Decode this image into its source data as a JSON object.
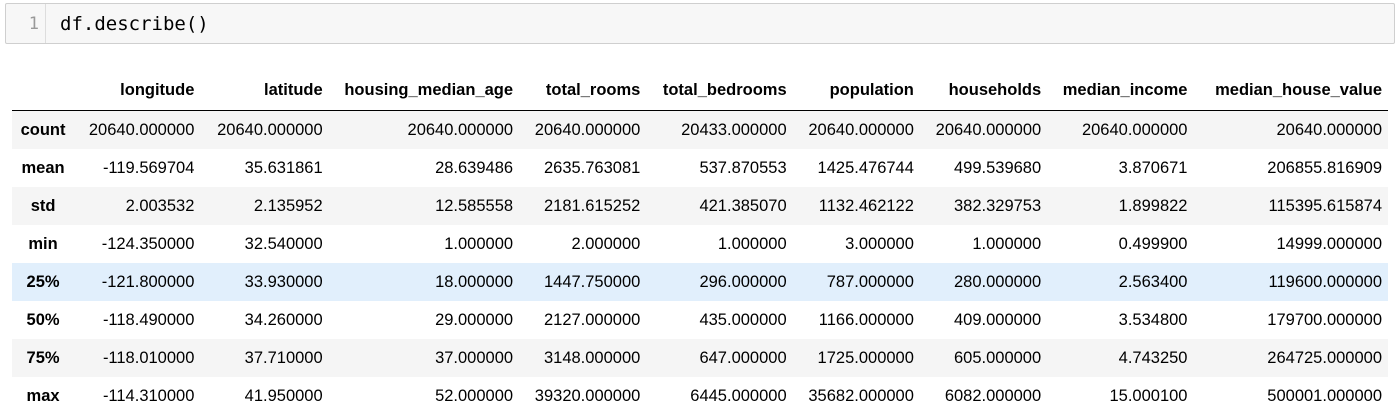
{
  "input_cell": {
    "line_number": "1",
    "code": "df.describe()"
  },
  "table": {
    "columns": [
      "longitude",
      "latitude",
      "housing_median_age",
      "total_rooms",
      "total_bedrooms",
      "population",
      "households",
      "median_income",
      "median_house_value"
    ],
    "rows": [
      {
        "index": "count",
        "values": [
          "20640.000000",
          "20640.000000",
          "20640.000000",
          "20640.000000",
          "20433.000000",
          "20640.000000",
          "20640.000000",
          "20640.000000",
          "20640.000000"
        ]
      },
      {
        "index": "mean",
        "values": [
          "-119.569704",
          "35.631861",
          "28.639486",
          "2635.763081",
          "537.870553",
          "1425.476744",
          "499.539680",
          "3.870671",
          "206855.816909"
        ]
      },
      {
        "index": "std",
        "values": [
          "2.003532",
          "2.135952",
          "12.585558",
          "2181.615252",
          "421.385070",
          "1132.462122",
          "382.329753",
          "1.899822",
          "115395.615874"
        ]
      },
      {
        "index": "min",
        "values": [
          "-124.350000",
          "32.540000",
          "1.000000",
          "2.000000",
          "1.000000",
          "3.000000",
          "1.000000",
          "0.499900",
          "14999.000000"
        ]
      },
      {
        "index": "25%",
        "values": [
          "-121.800000",
          "33.930000",
          "18.000000",
          "1447.750000",
          "296.000000",
          "787.000000",
          "280.000000",
          "2.563400",
          "119600.000000"
        ]
      },
      {
        "index": "50%",
        "values": [
          "-118.490000",
          "34.260000",
          "29.000000",
          "2127.000000",
          "435.000000",
          "1166.000000",
          "409.000000",
          "3.534800",
          "179700.000000"
        ]
      },
      {
        "index": "75%",
        "values": [
          "-118.010000",
          "37.710000",
          "37.000000",
          "3148.000000",
          "647.000000",
          "1725.000000",
          "605.000000",
          "4.743250",
          "264725.000000"
        ]
      },
      {
        "index": "max",
        "values": [
          "-114.310000",
          "41.950000",
          "52.000000",
          "39320.000000",
          "6445.000000",
          "35682.000000",
          "6082.000000",
          "15.000100",
          "500001.000000"
        ]
      }
    ],
    "highlighted_row_index": "25%",
    "colors": {
      "odd_row": "#f5f5f5",
      "even_row": "#ffffff",
      "hover_row": "#e1effc"
    }
  }
}
